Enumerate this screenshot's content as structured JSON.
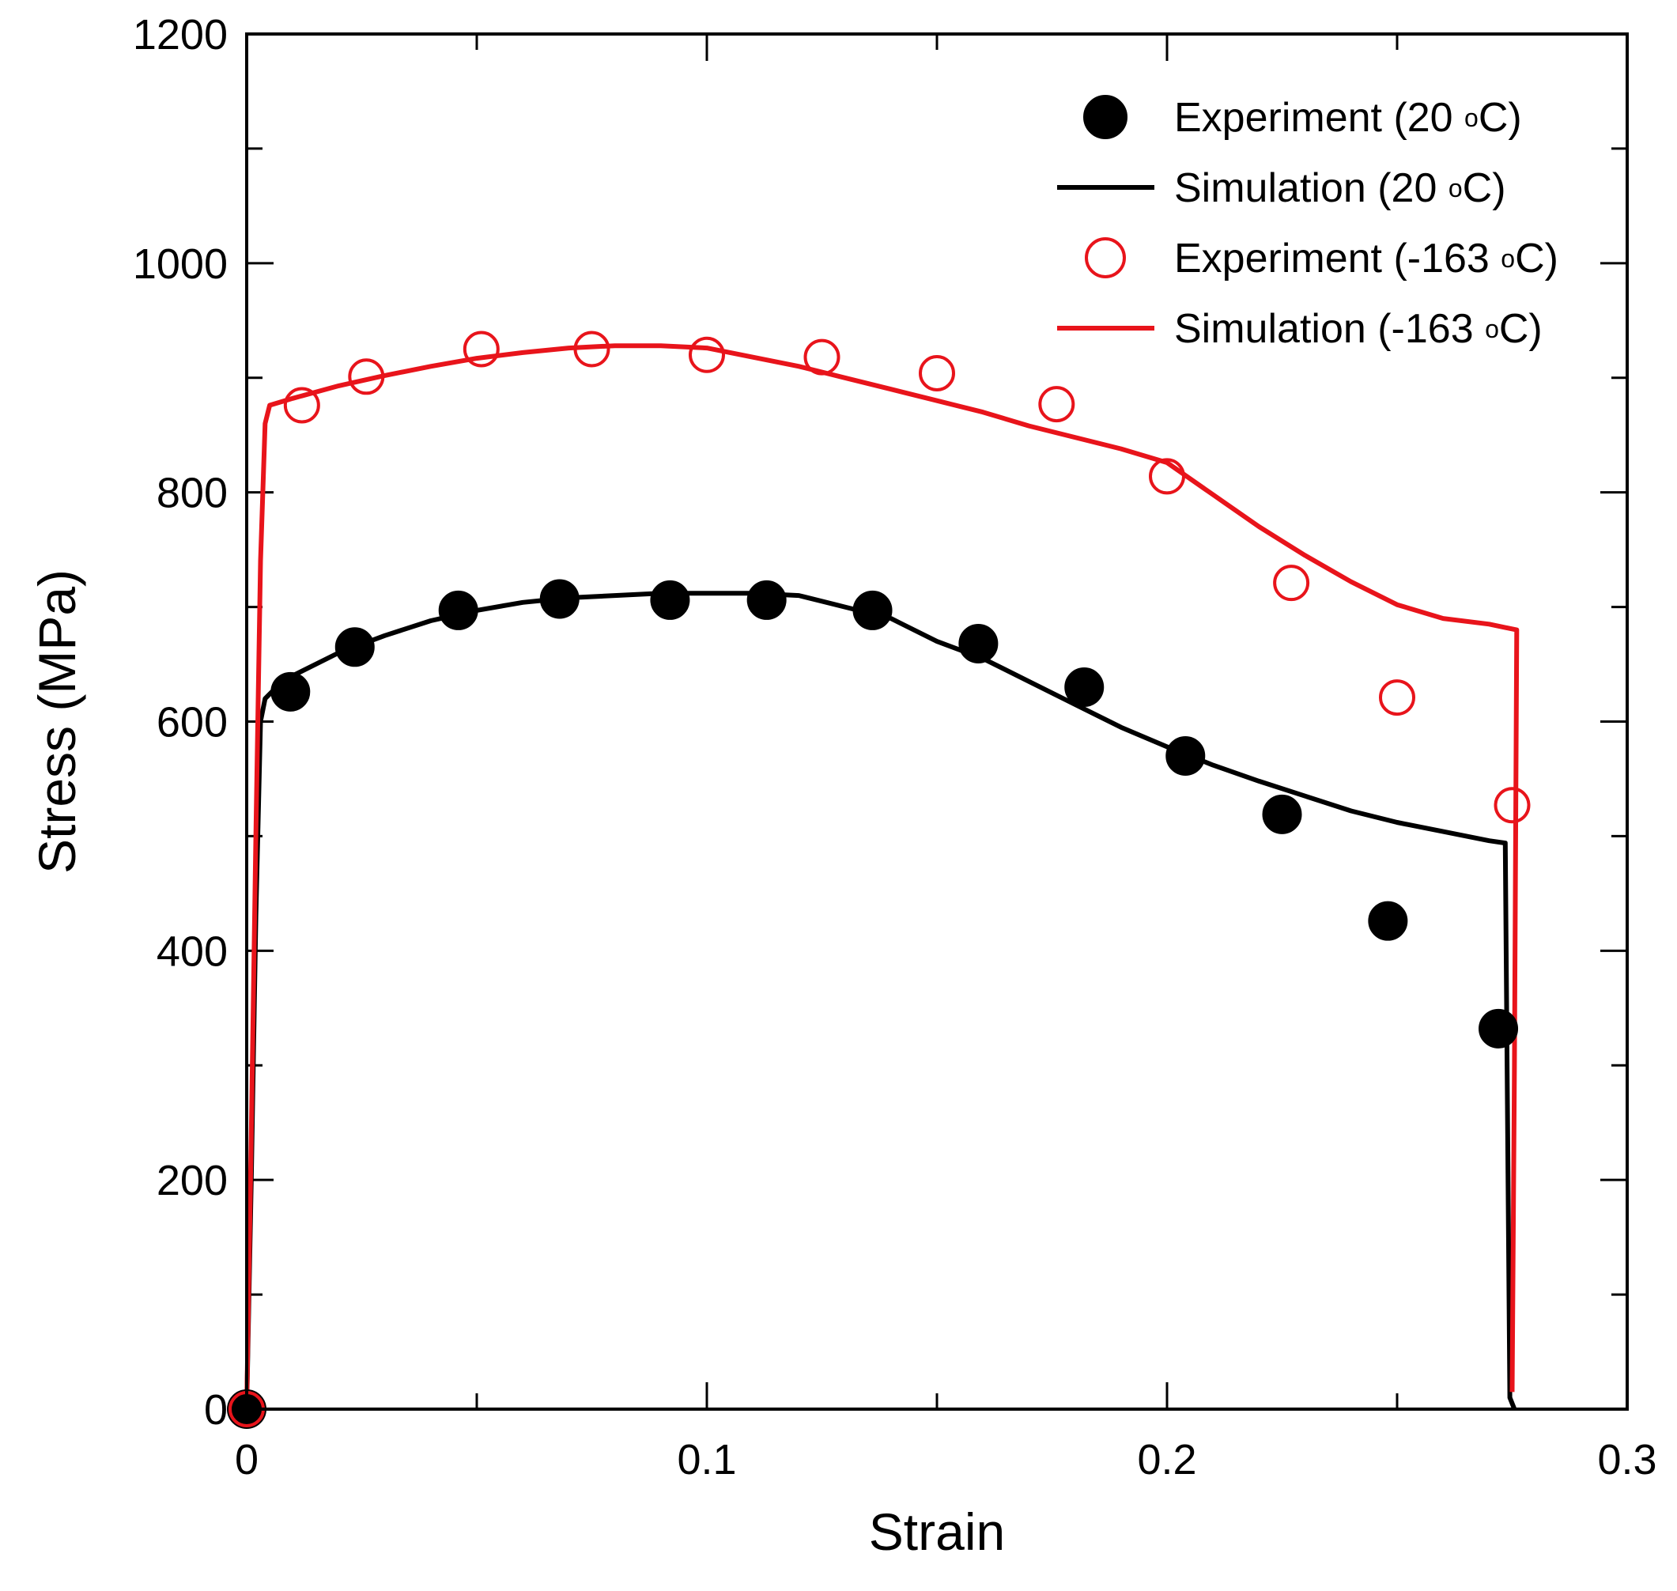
{
  "chart_data": {
    "type": "line",
    "title": "",
    "xlabel": "Strain",
    "ylabel": "Stress (MPa)",
    "xlim": [
      0,
      0.3
    ],
    "ylim": [
      0,
      1200
    ],
    "x_ticks": [
      "0",
      "0.1",
      "0.2",
      "0.3"
    ],
    "y_ticks": [
      "0",
      "200",
      "400",
      "600",
      "800",
      "1000",
      "1200"
    ],
    "grid": false,
    "legend_position": "top-right",
    "series": [
      {
        "name": "Experiment (20 °C)",
        "legend_main": "Experiment (20 ",
        "legend_sup": "o",
        "legend_end": "C)",
        "kind": "marker-filled",
        "color": "#000000",
        "x": [
          0,
          0.0095,
          0.0235,
          0.046,
          0.068,
          0.092,
          0.113,
          0.136,
          0.159,
          0.182,
          0.204,
          0.225,
          0.248,
          0.272
        ],
        "y": [
          0,
          626,
          665,
          697,
          707,
          706,
          706,
          697,
          668,
          630,
          570,
          519,
          426,
          332
        ]
      },
      {
        "name": "Simulation (20 °C)",
        "legend_main": "Simulation (20 ",
        "legend_sup": "o",
        "legend_end": "C)",
        "kind": "line",
        "color": "#000000",
        "x": [
          0,
          0.001,
          0.002,
          0.003,
          0.004,
          0.006,
          0.01,
          0.02,
          0.03,
          0.04,
          0.05,
          0.06,
          0.07,
          0.08,
          0.09,
          0.1,
          0.11,
          0.12,
          0.13,
          0.14,
          0.15,
          0.16,
          0.17,
          0.18,
          0.19,
          0.2,
          0.21,
          0.22,
          0.23,
          0.24,
          0.25,
          0.26,
          0.27,
          0.2735,
          0.2745,
          0.2755
        ],
        "y": [
          0,
          200,
          430,
          600,
          620,
          628,
          640,
          660,
          675,
          688,
          697,
          704,
          708,
          710,
          712,
          712,
          712,
          710,
          700,
          690,
          670,
          655,
          635,
          615,
          595,
          578,
          562,
          548,
          535,
          522,
          512,
          504,
          496,
          494,
          10,
          0
        ]
      },
      {
        "name": "Experiment (-163 °C)",
        "legend_main": "Experiment (-163 ",
        "legend_sup": "o",
        "legend_end": "C)",
        "kind": "marker-open",
        "color": "#e8141b",
        "x": [
          0,
          0.012,
          0.026,
          0.051,
          0.075,
          0.1,
          0.125,
          0.15,
          0.176,
          0.2,
          0.227,
          0.25,
          0.275
        ],
        "y": [
          0,
          876,
          901,
          925,
          925,
          920,
          918,
          904,
          877,
          814,
          721,
          621,
          527
        ]
      },
      {
        "name": "Simulation (-163 °C)",
        "legend_main": "Simulation (-163 ",
        "legend_sup": "o",
        "legend_end": "C)",
        "kind": "line",
        "color": "#e8141b",
        "x": [
          0,
          0.001,
          0.002,
          0.003,
          0.004,
          0.005,
          0.01,
          0.02,
          0.03,
          0.04,
          0.05,
          0.06,
          0.07,
          0.08,
          0.09,
          0.1,
          0.11,
          0.12,
          0.13,
          0.14,
          0.15,
          0.16,
          0.17,
          0.18,
          0.19,
          0.2,
          0.21,
          0.22,
          0.23,
          0.24,
          0.25,
          0.26,
          0.27,
          0.276,
          0.2755,
          0.275
        ],
        "y": [
          0,
          240,
          500,
          740,
          860,
          876,
          882,
          893,
          902,
          910,
          917,
          922,
          926,
          928,
          928,
          926,
          918,
          910,
          900,
          890,
          880,
          870,
          858,
          848,
          838,
          826,
          798,
          770,
          745,
          722,
          702,
          690,
          685,
          680,
          300,
          15
        ]
      }
    ]
  }
}
